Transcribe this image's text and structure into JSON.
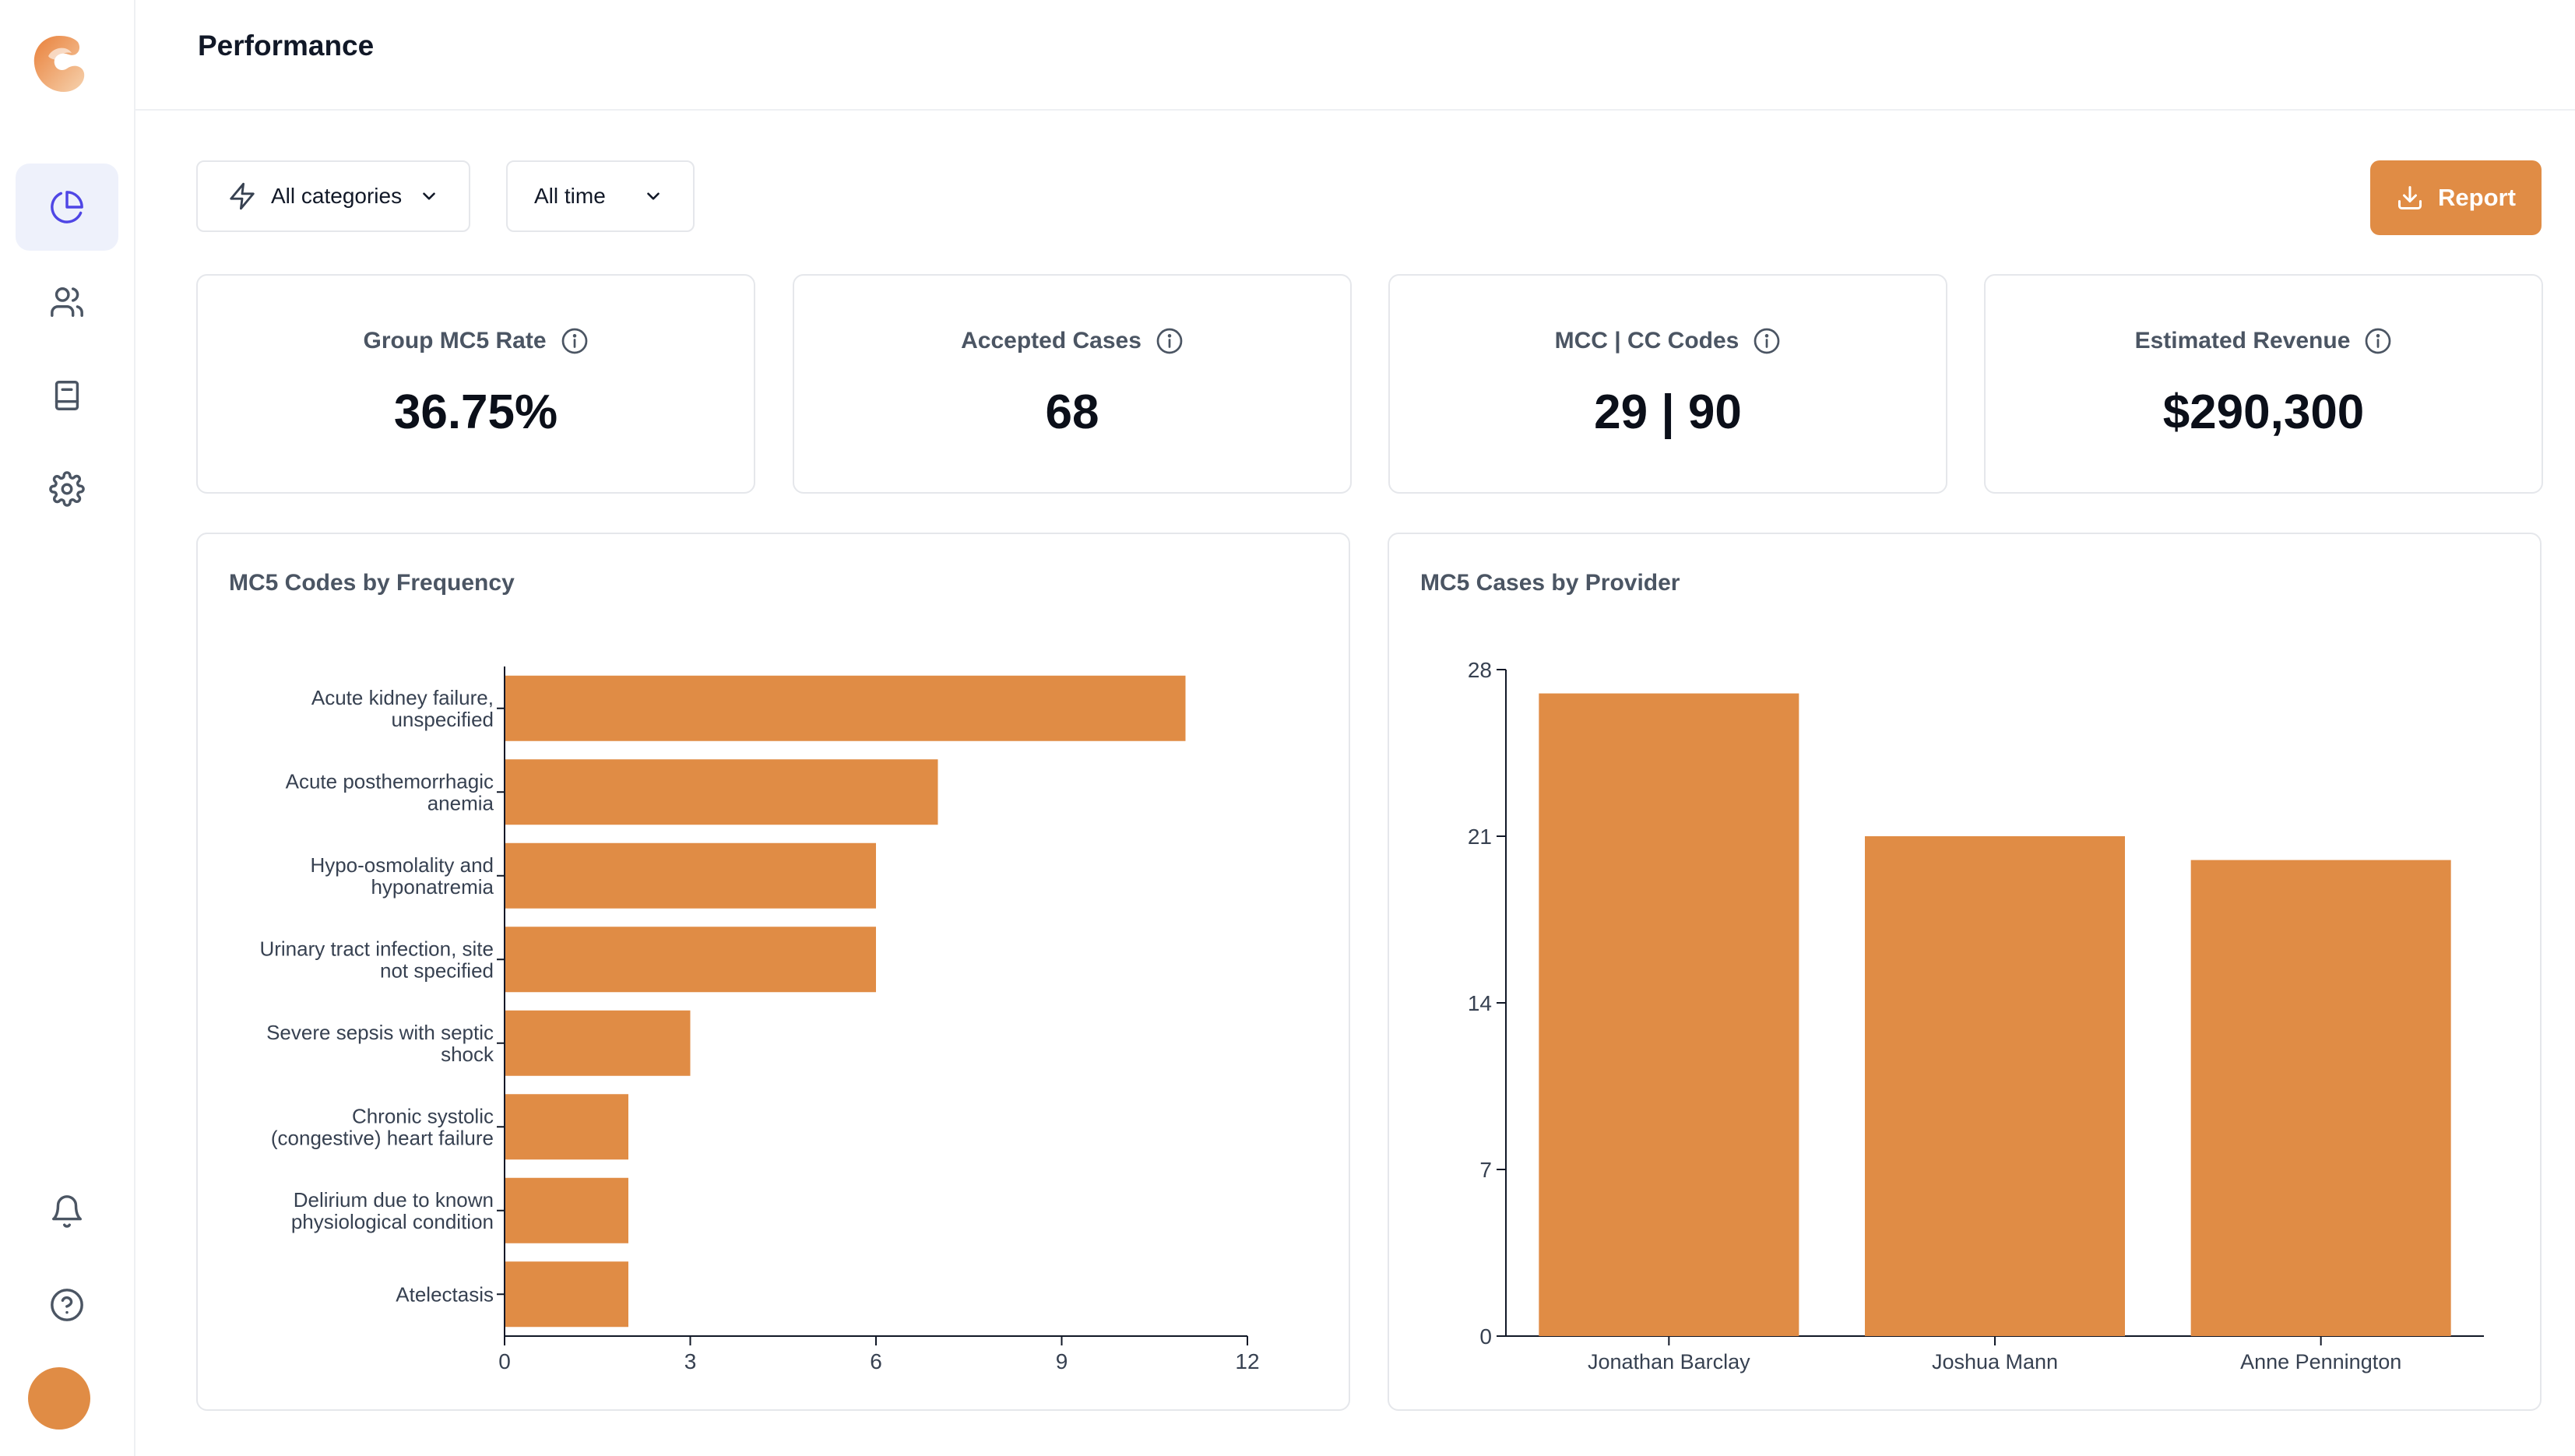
{
  "header": {
    "title": "Performance"
  },
  "filters": {
    "category": {
      "label": "All categories",
      "icon": "lightning-icon"
    },
    "period": {
      "label": "All time"
    }
  },
  "report_button": {
    "label": "Report",
    "icon": "download-icon"
  },
  "sidebar": {
    "items": [
      {
        "name": "dashboard",
        "icon": "pie-chart-icon",
        "active": true
      },
      {
        "name": "users",
        "icon": "users-icon"
      },
      {
        "name": "documents",
        "icon": "book-icon"
      },
      {
        "name": "settings",
        "icon": "gear-icon"
      },
      {
        "name": "notifications",
        "icon": "bell-icon"
      },
      {
        "name": "help",
        "icon": "help-icon"
      }
    ]
  },
  "stats": [
    {
      "label": "Group MC5 Rate",
      "value": "36.75%"
    },
    {
      "label": "Accepted Cases",
      "value": "68"
    },
    {
      "label": "MCC | CC Codes",
      "value": "29 | 90"
    },
    {
      "label": "Estimated Revenue",
      "value": "$290,300"
    }
  ],
  "colors": {
    "accent": "#e08c45",
    "bar": "#e08c45"
  },
  "chart_data": [
    {
      "type": "bar",
      "orientation": "horizontal",
      "title": "MC5 Codes by Frequency",
      "categories": [
        [
          "Acute kidney failure,",
          "unspecified"
        ],
        [
          "Acute posthemorrhagic",
          "anemia"
        ],
        [
          "Hypo-osmolality and",
          "hyponatremia"
        ],
        [
          "Urinary tract infection, site",
          "not specified"
        ],
        [
          "Severe sepsis with septic",
          "shock"
        ],
        [
          "Chronic systolic",
          "(congestive) heart failure"
        ],
        [
          "Delirium due to known",
          "physiological condition"
        ],
        [
          "Atelectasis"
        ]
      ],
      "values": [
        11,
        7,
        6,
        6,
        3,
        2,
        2,
        2
      ],
      "xlim": [
        0,
        12
      ],
      "xticks": [
        0,
        3,
        6,
        9,
        12
      ]
    },
    {
      "type": "bar",
      "orientation": "vertical",
      "title": "MC5 Cases by Provider",
      "categories": [
        "Jonathan Barclay",
        "Joshua Mann",
        "Anne Pennington"
      ],
      "values": [
        27,
        21,
        20
      ],
      "ylim": [
        0,
        28
      ],
      "yticks": [
        0,
        7,
        14,
        21,
        28
      ]
    }
  ]
}
